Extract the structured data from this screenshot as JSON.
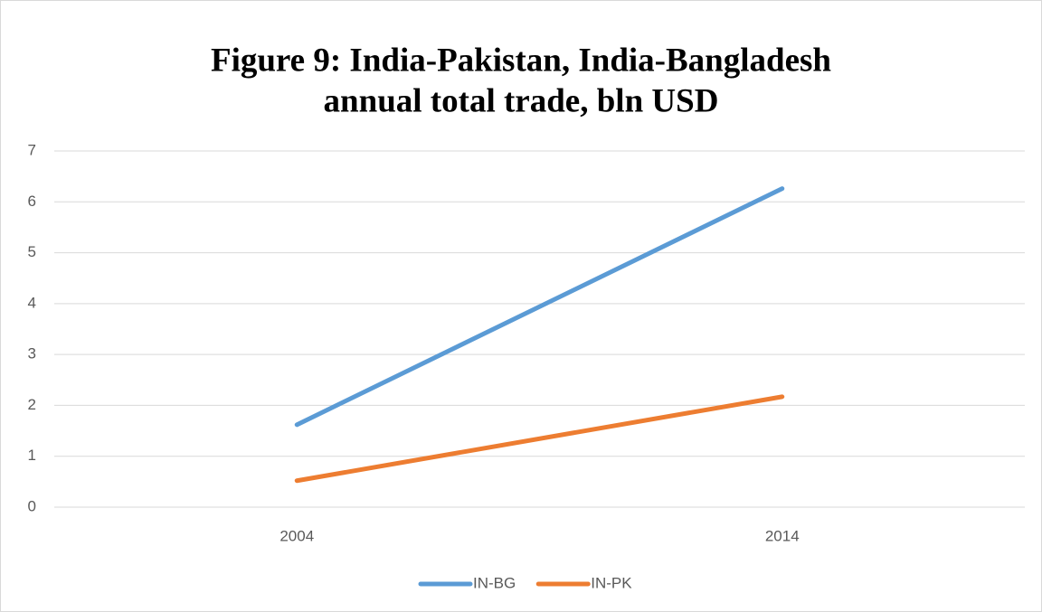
{
  "chart_data": {
    "type": "line",
    "title": [
      "Figure 9: India-Pakistan, India-Bangladesh",
      "annual total trade, bln USD"
    ],
    "categories": [
      "2004",
      "2014"
    ],
    "series": [
      {
        "name": "IN-BG",
        "color": "#5b9bd5",
        "values": [
          1.62,
          6.26
        ]
      },
      {
        "name": "IN-PK",
        "color": "#ed7d31",
        "values": [
          0.52,
          2.17
        ]
      }
    ],
    "ylim": [
      0,
      7
    ],
    "yticks": [
      0,
      1,
      2,
      3,
      4,
      5,
      6,
      7
    ],
    "grid": true,
    "legend": "bottom"
  }
}
